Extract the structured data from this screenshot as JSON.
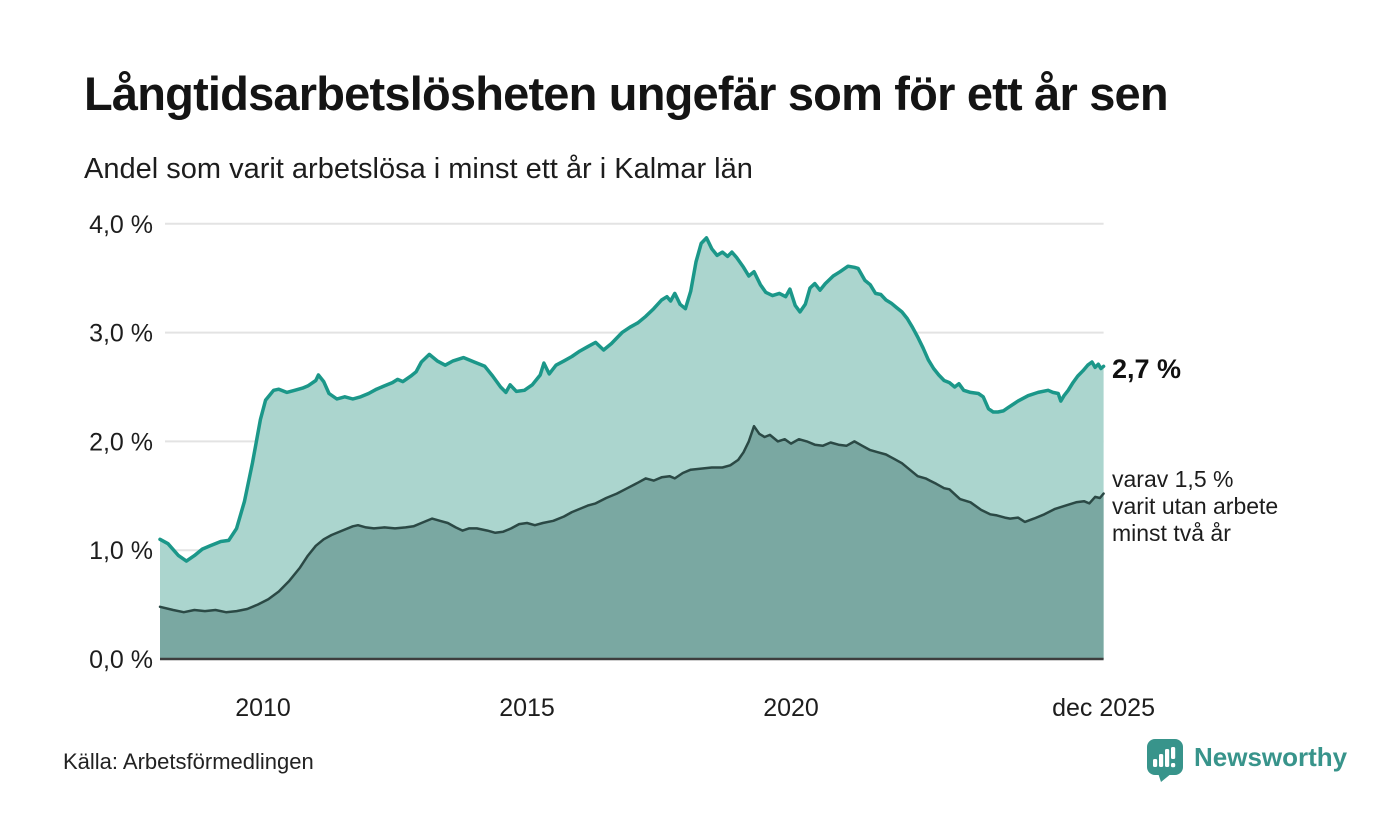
{
  "header": {
    "title": "Långtidsarbetslösheten ungefär som för ett år sen",
    "subtitle": "Andel som varit arbetslösa i minst ett år i Kalmar län"
  },
  "annotations": {
    "primary_value": "2,7 %",
    "secondary_lines": [
      "varav 1,5 %",
      "varit utan arbete",
      "minst två år"
    ]
  },
  "footer": {
    "source": "Källa: Arbetsförmedlingen",
    "brand": "Newsworthy"
  },
  "colors": {
    "series1_line": "#1b9789",
    "series1_fill": "#abd5ce",
    "series2_line": "#2b4945",
    "series2_fill": "#7aa8a2",
    "grid": "#e3e3e3",
    "axis": "#3d3d3d",
    "text": "#1d1d1d",
    "brand": "#38948b"
  },
  "chart_data": {
    "type": "area",
    "title": "Långtidsarbetslösheten ungefär som för ett år sen",
    "subtitle": "Andel som varit arbetslösa i minst ett år i Kalmar län",
    "source": "Källa: Arbetsförmedlingen",
    "unit": "procent",
    "region": "Kalmar län",
    "ylim": [
      0,
      4
    ],
    "x_range": [
      2008.05,
      2025.92
    ],
    "grid": true,
    "legend_position": "right-annotations",
    "y_ticks": [
      {
        "v": 0,
        "label": "0,0 %"
      },
      {
        "v": 1,
        "label": "1,0 %"
      },
      {
        "v": 2,
        "label": "2,0 %"
      },
      {
        "v": 3,
        "label": "3,0 %"
      },
      {
        "v": 4,
        "label": "4,0 %"
      }
    ],
    "x_ticks": [
      {
        "t": 2010,
        "label": "2010"
      },
      {
        "t": 2015,
        "label": "2015"
      },
      {
        "t": 2020,
        "label": "2020"
      },
      {
        "t": 2025.92,
        "label": "dec 2025"
      }
    ],
    "series": [
      {
        "name": "Andel arbetslösa minst ett år",
        "end_value": 2.7,
        "end_label": "2,7 %",
        "line_color": "#1b9789",
        "fill_color": "#abd5ce",
        "line_width": 3.5,
        "points": [
          [
            2008.05,
            1.1
          ],
          [
            2008.2,
            1.06
          ],
          [
            2008.4,
            0.95
          ],
          [
            2008.55,
            0.9
          ],
          [
            2008.7,
            0.95
          ],
          [
            2008.85,
            1.01
          ],
          [
            2009.0,
            1.04
          ],
          [
            2009.2,
            1.08
          ],
          [
            2009.35,
            1.09
          ],
          [
            2009.5,
            1.2
          ],
          [
            2009.65,
            1.45
          ],
          [
            2009.8,
            1.8
          ],
          [
            2009.95,
            2.2
          ],
          [
            2010.05,
            2.38
          ],
          [
            2010.2,
            2.47
          ],
          [
            2010.3,
            2.48
          ],
          [
            2010.45,
            2.45
          ],
          [
            2010.6,
            2.47
          ],
          [
            2010.75,
            2.49
          ],
          [
            2010.85,
            2.51
          ],
          [
            2011.0,
            2.56
          ],
          [
            2011.05,
            2.61
          ],
          [
            2011.15,
            2.55
          ],
          [
            2011.25,
            2.44
          ],
          [
            2011.4,
            2.39
          ],
          [
            2011.55,
            2.41
          ],
          [
            2011.7,
            2.39
          ],
          [
            2011.85,
            2.41
          ],
          [
            2012.0,
            2.44
          ],
          [
            2012.15,
            2.48
          ],
          [
            2012.3,
            2.51
          ],
          [
            2012.45,
            2.54
          ],
          [
            2012.55,
            2.57
          ],
          [
            2012.65,
            2.55
          ],
          [
            2012.8,
            2.6
          ],
          [
            2012.9,
            2.64
          ],
          [
            2013.0,
            2.73
          ],
          [
            2013.15,
            2.8
          ],
          [
            2013.3,
            2.74
          ],
          [
            2013.45,
            2.7
          ],
          [
            2013.6,
            2.74
          ],
          [
            2013.8,
            2.77
          ],
          [
            2014.0,
            2.73
          ],
          [
            2014.2,
            2.69
          ],
          [
            2014.35,
            2.6
          ],
          [
            2014.5,
            2.5
          ],
          [
            2014.6,
            2.45
          ],
          [
            2014.68,
            2.52
          ],
          [
            2014.8,
            2.46
          ],
          [
            2014.95,
            2.47
          ],
          [
            2015.1,
            2.52
          ],
          [
            2015.25,
            2.61
          ],
          [
            2015.32,
            2.72
          ],
          [
            2015.42,
            2.62
          ],
          [
            2015.55,
            2.7
          ],
          [
            2015.7,
            2.74
          ],
          [
            2015.85,
            2.78
          ],
          [
            2016.0,
            2.83
          ],
          [
            2016.15,
            2.87
          ],
          [
            2016.3,
            2.91
          ],
          [
            2016.45,
            2.84
          ],
          [
            2016.6,
            2.9
          ],
          [
            2016.8,
            3.0
          ],
          [
            2016.95,
            3.05
          ],
          [
            2017.1,
            3.09
          ],
          [
            2017.25,
            3.15
          ],
          [
            2017.4,
            3.22
          ],
          [
            2017.55,
            3.3
          ],
          [
            2017.65,
            3.33
          ],
          [
            2017.72,
            3.29
          ],
          [
            2017.8,
            3.36
          ],
          [
            2017.9,
            3.26
          ],
          [
            2018.0,
            3.22
          ],
          [
            2018.1,
            3.38
          ],
          [
            2018.2,
            3.65
          ],
          [
            2018.3,
            3.82
          ],
          [
            2018.4,
            3.87
          ],
          [
            2018.5,
            3.77
          ],
          [
            2018.6,
            3.71
          ],
          [
            2018.7,
            3.74
          ],
          [
            2018.8,
            3.7
          ],
          [
            2018.88,
            3.74
          ],
          [
            2018.97,
            3.69
          ],
          [
            2019.1,
            3.6
          ],
          [
            2019.2,
            3.52
          ],
          [
            2019.3,
            3.56
          ],
          [
            2019.42,
            3.44
          ],
          [
            2019.52,
            3.37
          ],
          [
            2019.65,
            3.34
          ],
          [
            2019.78,
            3.36
          ],
          [
            2019.9,
            3.33
          ],
          [
            2019.98,
            3.4
          ],
          [
            2020.08,
            3.25
          ],
          [
            2020.17,
            3.19
          ],
          [
            2020.27,
            3.26
          ],
          [
            2020.36,
            3.41
          ],
          [
            2020.45,
            3.45
          ],
          [
            2020.55,
            3.39
          ],
          [
            2020.65,
            3.45
          ],
          [
            2020.8,
            3.52
          ],
          [
            2020.93,
            3.56
          ],
          [
            2021.08,
            3.61
          ],
          [
            2021.2,
            3.6
          ],
          [
            2021.27,
            3.59
          ],
          [
            2021.4,
            3.48
          ],
          [
            2021.5,
            3.44
          ],
          [
            2021.6,
            3.36
          ],
          [
            2021.7,
            3.35
          ],
          [
            2021.8,
            3.3
          ],
          [
            2021.9,
            3.27
          ],
          [
            2022.0,
            3.23
          ],
          [
            2022.1,
            3.19
          ],
          [
            2022.2,
            3.13
          ],
          [
            2022.3,
            3.05
          ],
          [
            2022.4,
            2.96
          ],
          [
            2022.5,
            2.86
          ],
          [
            2022.6,
            2.75
          ],
          [
            2022.7,
            2.67
          ],
          [
            2022.8,
            2.61
          ],
          [
            2022.9,
            2.56
          ],
          [
            2023.0,
            2.54
          ],
          [
            2023.1,
            2.5
          ],
          [
            2023.18,
            2.53
          ],
          [
            2023.27,
            2.47
          ],
          [
            2023.4,
            2.45
          ],
          [
            2023.55,
            2.44
          ],
          [
            2023.64,
            2.41
          ],
          [
            2023.74,
            2.3
          ],
          [
            2023.83,
            2.27
          ],
          [
            2023.92,
            2.27
          ],
          [
            2024.02,
            2.28
          ],
          [
            2024.11,
            2.31
          ],
          [
            2024.3,
            2.37
          ],
          [
            2024.49,
            2.42
          ],
          [
            2024.68,
            2.45
          ],
          [
            2024.87,
            2.47
          ],
          [
            2024.96,
            2.45
          ],
          [
            2025.06,
            2.44
          ],
          [
            2025.11,
            2.37
          ],
          [
            2025.17,
            2.42
          ],
          [
            2025.25,
            2.47
          ],
          [
            2025.34,
            2.54
          ],
          [
            2025.43,
            2.6
          ],
          [
            2025.53,
            2.65
          ],
          [
            2025.62,
            2.7
          ],
          [
            2025.7,
            2.73
          ],
          [
            2025.76,
            2.68
          ],
          [
            2025.82,
            2.71
          ],
          [
            2025.87,
            2.67
          ],
          [
            2025.92,
            2.69
          ]
        ]
      },
      {
        "name": "Varav utan arbete minst två år",
        "end_value": 1.5,
        "end_label": "varav 1,5 % varit utan arbete minst två år",
        "line_color": "#2b4945",
        "fill_color": "#7aa8a2",
        "line_width": 2.5,
        "points": [
          [
            2008.05,
            0.48
          ],
          [
            2008.3,
            0.45
          ],
          [
            2008.5,
            0.43
          ],
          [
            2008.7,
            0.45
          ],
          [
            2008.9,
            0.44
          ],
          [
            2009.1,
            0.45
          ],
          [
            2009.3,
            0.43
          ],
          [
            2009.5,
            0.44
          ],
          [
            2009.7,
            0.46
          ],
          [
            2009.9,
            0.5
          ],
          [
            2010.1,
            0.55
          ],
          [
            2010.3,
            0.62
          ],
          [
            2010.5,
            0.72
          ],
          [
            2010.7,
            0.84
          ],
          [
            2010.85,
            0.95
          ],
          [
            2011.0,
            1.04
          ],
          [
            2011.15,
            1.1
          ],
          [
            2011.3,
            1.14
          ],
          [
            2011.5,
            1.18
          ],
          [
            2011.7,
            1.22
          ],
          [
            2011.8,
            1.23
          ],
          [
            2011.95,
            1.21
          ],
          [
            2012.1,
            1.2
          ],
          [
            2012.3,
            1.21
          ],
          [
            2012.5,
            1.2
          ],
          [
            2012.7,
            1.21
          ],
          [
            2012.85,
            1.22
          ],
          [
            2013.0,
            1.25
          ],
          [
            2013.2,
            1.29
          ],
          [
            2013.35,
            1.27
          ],
          [
            2013.5,
            1.25
          ],
          [
            2013.65,
            1.21
          ],
          [
            2013.78,
            1.18
          ],
          [
            2013.9,
            1.2
          ],
          [
            2014.05,
            1.2
          ],
          [
            2014.25,
            1.18
          ],
          [
            2014.4,
            1.16
          ],
          [
            2014.55,
            1.17
          ],
          [
            2014.7,
            1.2
          ],
          [
            2014.85,
            1.24
          ],
          [
            2015.0,
            1.25
          ],
          [
            2015.15,
            1.23
          ],
          [
            2015.3,
            1.25
          ],
          [
            2015.5,
            1.27
          ],
          [
            2015.7,
            1.31
          ],
          [
            2015.85,
            1.35
          ],
          [
            2016.0,
            1.38
          ],
          [
            2016.15,
            1.41
          ],
          [
            2016.3,
            1.43
          ],
          [
            2016.5,
            1.48
          ],
          [
            2016.7,
            1.52
          ],
          [
            2016.9,
            1.57
          ],
          [
            2017.1,
            1.62
          ],
          [
            2017.25,
            1.66
          ],
          [
            2017.4,
            1.64
          ],
          [
            2017.55,
            1.67
          ],
          [
            2017.7,
            1.68
          ],
          [
            2017.8,
            1.66
          ],
          [
            2017.95,
            1.71
          ],
          [
            2018.1,
            1.74
          ],
          [
            2018.3,
            1.75
          ],
          [
            2018.5,
            1.76
          ],
          [
            2018.7,
            1.76
          ],
          [
            2018.85,
            1.78
          ],
          [
            2019.0,
            1.83
          ],
          [
            2019.1,
            1.9
          ],
          [
            2019.2,
            2.0
          ],
          [
            2019.3,
            2.14
          ],
          [
            2019.4,
            2.07
          ],
          [
            2019.5,
            2.04
          ],
          [
            2019.6,
            2.06
          ],
          [
            2019.75,
            2.0
          ],
          [
            2019.88,
            2.02
          ],
          [
            2020.0,
            1.98
          ],
          [
            2020.15,
            2.02
          ],
          [
            2020.3,
            2.0
          ],
          [
            2020.45,
            1.97
          ],
          [
            2020.6,
            1.96
          ],
          [
            2020.75,
            1.99
          ],
          [
            2020.9,
            1.97
          ],
          [
            2021.05,
            1.96
          ],
          [
            2021.2,
            2.0
          ],
          [
            2021.35,
            1.96
          ],
          [
            2021.5,
            1.92
          ],
          [
            2021.65,
            1.9
          ],
          [
            2021.8,
            1.88
          ],
          [
            2021.95,
            1.84
          ],
          [
            2022.1,
            1.8
          ],
          [
            2022.25,
            1.74
          ],
          [
            2022.4,
            1.68
          ],
          [
            2022.55,
            1.66
          ],
          [
            2022.63,
            1.64
          ],
          [
            2022.75,
            1.61
          ],
          [
            2022.9,
            1.57
          ],
          [
            2023.0,
            1.56
          ],
          [
            2023.2,
            1.47
          ],
          [
            2023.4,
            1.44
          ],
          [
            2023.6,
            1.37
          ],
          [
            2023.77,
            1.33
          ],
          [
            2023.9,
            1.32
          ],
          [
            2024.05,
            1.3
          ],
          [
            2024.15,
            1.29
          ],
          [
            2024.3,
            1.3
          ],
          [
            2024.43,
            1.26
          ],
          [
            2024.6,
            1.29
          ],
          [
            2024.8,
            1.33
          ],
          [
            2025.0,
            1.38
          ],
          [
            2025.2,
            1.41
          ],
          [
            2025.4,
            1.44
          ],
          [
            2025.55,
            1.45
          ],
          [
            2025.65,
            1.43
          ],
          [
            2025.76,
            1.49
          ],
          [
            2025.85,
            1.48
          ],
          [
            2025.92,
            1.52
          ]
        ]
      }
    ]
  }
}
